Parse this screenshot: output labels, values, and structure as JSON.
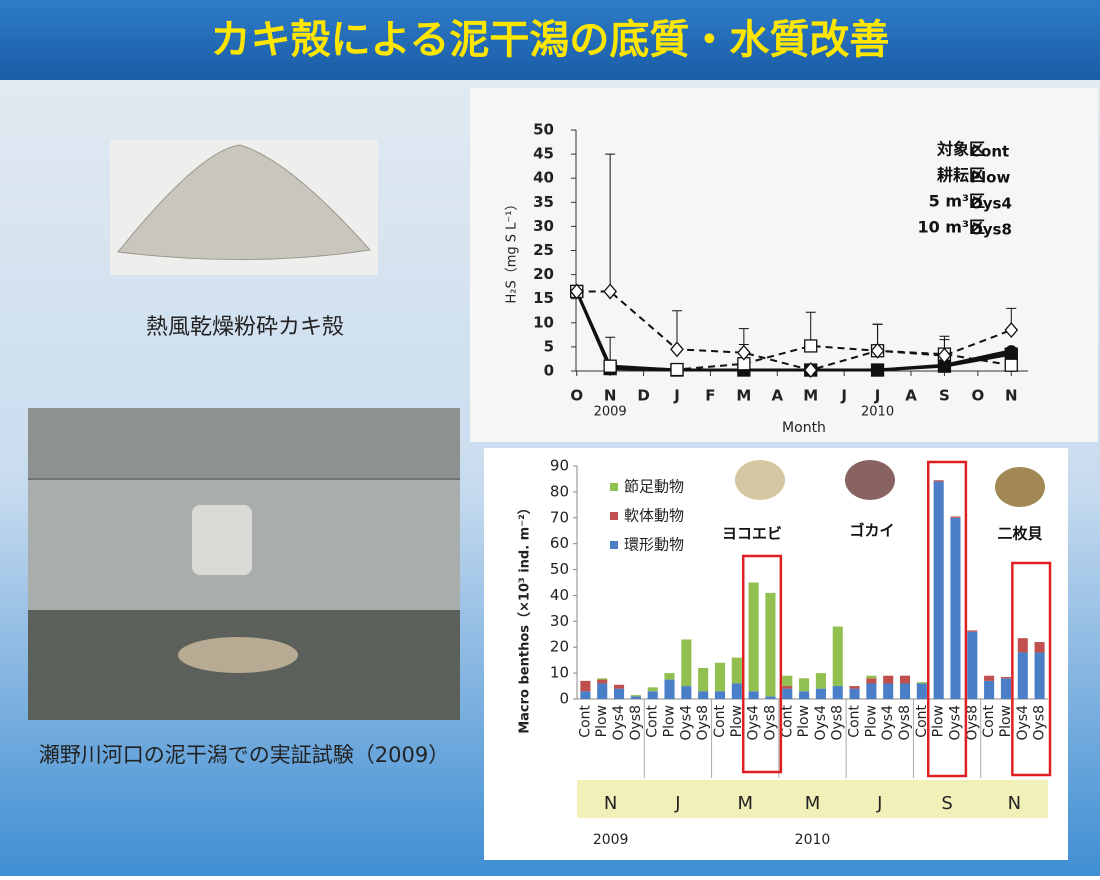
{
  "header": {
    "title": "カキ殻による泥干潟の底質・水質改善"
  },
  "captions": {
    "oyster_shell": "熱風乾燥粉砕カキ殻",
    "field_test": "瀬野川河口の泥干潟での実証試験（2009）"
  },
  "chart_data": [
    {
      "type": "line",
      "ylabel": "H₂S（mg S L⁻¹）",
      "xlabel": "Month",
      "xticks": [
        {
          "value": 0,
          "label": "O"
        },
        {
          "value": 1,
          "label": "N"
        },
        {
          "value": 2,
          "label": "D"
        },
        {
          "value": 3,
          "label": "J"
        },
        {
          "value": 4,
          "label": "F"
        },
        {
          "value": 5,
          "label": "M"
        },
        {
          "value": 6,
          "label": "A"
        },
        {
          "value": 7,
          "label": "M"
        },
        {
          "value": 8,
          "label": "J"
        },
        {
          "value": 9,
          "label": "J"
        },
        {
          "value": 10,
          "label": "A"
        },
        {
          "value": 11,
          "label": "S"
        },
        {
          "value": 12,
          "label": "O"
        },
        {
          "value": 13,
          "label": "N"
        }
      ],
      "year_labels": [
        {
          "value": 1,
          "label": "2009"
        },
        {
          "value": 9,
          "label": "2010"
        }
      ],
      "xlim": [
        -0.5,
        13.5
      ],
      "ylim": [
        0,
        50
      ],
      "yticks": [
        0,
        5,
        10,
        15,
        20,
        25,
        30,
        35,
        40,
        45,
        50
      ],
      "series": [
        {
          "name": "Cont",
          "label": "対象区",
          "color": "#111111",
          "dash": false,
          "marker": "square-filled",
          "x": [
            0,
            1,
            3,
            5,
            7,
            9,
            11,
            13
          ],
          "values": [
            16.5,
            0.5,
            0.2,
            0.2,
            0.2,
            0.2,
            1,
            3.5
          ]
        },
        {
          "name": "Plow",
          "label": "耕耘区",
          "color": "#111111",
          "dash": false,
          "marker": "circle-filled",
          "x": [
            0,
            1,
            3,
            5,
            7,
            9,
            11,
            13
          ],
          "values": [
            16.5,
            1,
            0.2,
            0.2,
            0.2,
            0.2,
            1.2,
            4.2
          ]
        },
        {
          "name": "Oys4",
          "label": "5 m³区",
          "color": "#111111",
          "dash": true,
          "marker": "square-open",
          "x": [
            0,
            1,
            3,
            5,
            7,
            9,
            11,
            13
          ],
          "values": [
            16.5,
            1,
            0.3,
            1.5,
            5.2,
            4.2,
            3.5,
            1.2
          ],
          "errors": [
            0,
            6,
            0,
            4,
            7,
            5.5,
            3,
            0
          ]
        },
        {
          "name": "Oys8",
          "label": "10 m³区",
          "color": "#111111",
          "dash": true,
          "marker": "diamond-open",
          "x": [
            0,
            1,
            3,
            5,
            7,
            9,
            11,
            13
          ],
          "values": [
            16.5,
            16.5,
            4.5,
            3.8,
            0.2,
            4.2,
            3.2,
            8.5
          ],
          "errors": [
            0,
            28.5,
            8,
            5,
            0,
            5.5,
            4,
            4.5
          ]
        }
      ]
    },
    {
      "type": "stacked-bar",
      "ylabel": "Macro benthos（×10³ ind. m⁻²）",
      "categories": [
        "Cont",
        "Plow",
        "Oys4",
        "Oys8",
        "Cont",
        "Plow",
        "Oys4",
        "Oys8",
        "Cont",
        "Plow",
        "Oys4",
        "Oys8",
        "Cont",
        "Plow",
        "Oys4",
        "Oys8",
        "Cont",
        "Plow",
        "Oys4",
        "Oys8",
        "Cont",
        "Plow",
        "Oys4",
        "Oys8",
        "Cont",
        "Plow",
        "Oys4",
        "Oys8"
      ],
      "groups": [
        "N",
        "J",
        "M",
        "M",
        "J",
        "S",
        "N"
      ],
      "year_labels": [
        {
          "value": 0,
          "label": "2009"
        },
        {
          "value": 3,
          "label": "2010"
        }
      ],
      "ylim": [
        0,
        90
      ],
      "yticks": [
        0,
        10,
        20,
        30,
        40,
        50,
        60,
        70,
        80,
        90
      ],
      "series": [
        {
          "name": "環形動物",
          "color": "#4a7fc8",
          "values": [
            3,
            6,
            4,
            1,
            3,
            7.5,
            5,
            3,
            3,
            6,
            3,
            1,
            4,
            3,
            4,
            5,
            4,
            6,
            6,
            6,
            6,
            84,
            70,
            26,
            7,
            8,
            18,
            18
          ]
        },
        {
          "name": "軟体動物",
          "color": "#c0504d",
          "values": [
            4,
            1.5,
            1.5,
            0,
            0,
            0,
            0,
            0,
            0,
            0,
            0,
            0,
            1,
            0,
            0,
            0,
            1,
            2,
            3,
            3,
            0,
            0.5,
            0.5,
            0.5,
            2,
            0.5,
            5.5,
            4
          ]
        },
        {
          "name": "節足動物",
          "color": "#92c050",
          "values": [
            0,
            0.5,
            0,
            0.5,
            1.5,
            2.5,
            18,
            9,
            11,
            10,
            42,
            40,
            4,
            5,
            6,
            23,
            0,
            1,
            0,
            0,
            0.5,
            0,
            0,
            0,
            0,
            0,
            0,
            0
          ]
        }
      ],
      "annotations": [
        "ヨコエビ",
        "ゴカイ",
        "二枚貝"
      ]
    }
  ]
}
